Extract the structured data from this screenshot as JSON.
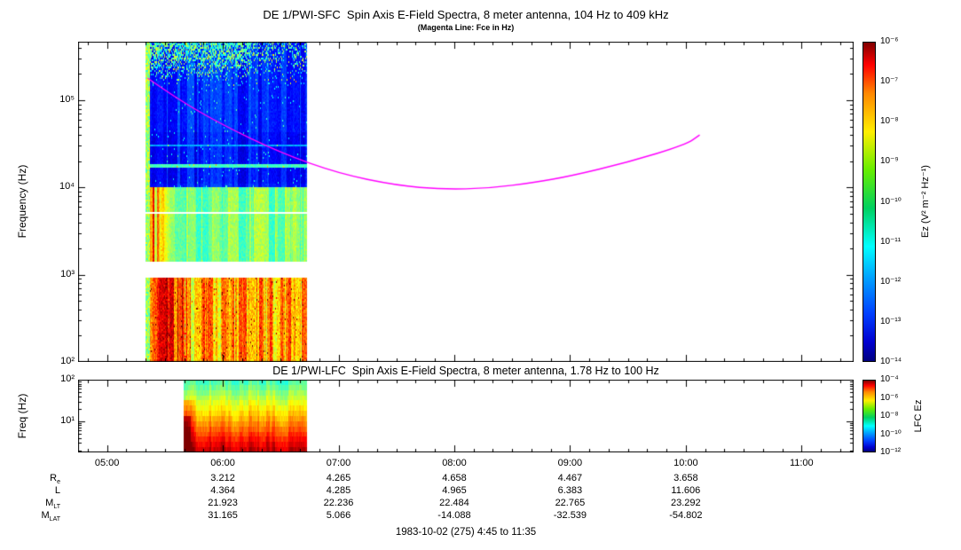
{
  "figure": {
    "footer": "1983-10-02 (275) 4:45 to 11:35"
  },
  "sfc": {
    "title": "DE 1/PWI-SFC  Spin Axis E-Field Spectra, 8 meter antenna, 104 Hz to 409 kHz",
    "subtitle": "(Magenta Line: Fce in Hz)",
    "ylabel": "Frequency (Hz)",
    "y_ticks": [
      "10⁵",
      "10⁴",
      "10³",
      "10²"
    ],
    "colorbar": {
      "label": "Ez (V² m⁻² Hz⁻¹)",
      "ticks": [
        "10⁻⁶",
        "10⁻⁷",
        "10⁻⁸",
        "10⁻⁹",
        "10⁻¹⁰",
        "10⁻¹¹",
        "10⁻¹²",
        "10⁻¹³",
        "10⁻¹⁴"
      ]
    }
  },
  "lfc": {
    "title": "DE 1/PWI-LFC  Spin Axis E-Field Spectra, 8 meter antenna, 1.78 Hz to 100 Hz",
    "ylabel": "Freq (Hz)",
    "y_ticks": [
      "10²",
      "10¹"
    ],
    "colorbar": {
      "label": "LFC Ez",
      "ticks": [
        "10⁻⁴",
        "10⁻⁶",
        "10⁻⁸",
        "10⁻¹⁰",
        "10⁻¹²"
      ]
    }
  },
  "time_axis": {
    "tick_labels": [
      "05:00",
      "06:00",
      "07:00",
      "08:00",
      "09:00",
      "10:00",
      "11:00"
    ]
  },
  "ephemeris": {
    "rows": [
      {
        "label_main": "R",
        "label_sub": "e",
        "values": [
          "3.212",
          "4.265",
          "4.658",
          "4.467",
          "3.658"
        ]
      },
      {
        "label_main": "L",
        "label_sub": "",
        "values": [
          "4.364",
          "4.285",
          "4.965",
          "6.383",
          "11.606"
        ]
      },
      {
        "label_main": "M",
        "label_sub": "LT",
        "values": [
          "21.923",
          "22.236",
          "22.484",
          "22.765",
          "23.292"
        ]
      },
      {
        "label_main": "M",
        "label_sub": "LAT",
        "values": [
          "31.165",
          "5.066",
          "-14.088",
          "-32.539",
          "-54.802"
        ]
      }
    ]
  },
  "chart_data": {
    "type": "heatmap",
    "x_hours_range": [
      4.75,
      11.45
    ],
    "x_tick_hours": [
      5,
      6,
      7,
      8,
      9,
      10,
      11
    ],
    "x_tick_labels": [
      "05:00",
      "06:00",
      "07:00",
      "08:00",
      "09:00",
      "10:00",
      "11:00"
    ],
    "x_minor_tick_minutes": 10,
    "panels": [
      {
        "id": "sfc",
        "kind": "spectrogram",
        "title": "DE 1/PWI-SFC  Spin Axis E-Field Spectra, 8 meter antenna, 104 Hz to 409 kHz",
        "freq_range_hz": [
          100,
          470000
        ],
        "freq_scale": "log",
        "y_tick_exps": [
          5,
          4,
          3,
          2
        ],
        "data_hours_range": [
          5.33,
          6.73
        ],
        "value_label": "Ez (V² m⁻² Hz⁻¹)",
        "colorbar_log10_range": [
          -6,
          -14
        ],
        "bands": [
          {
            "freq_hz": [
              100,
              925
            ],
            "character": "intense green with yellow-red vertical streaks, hottest before 05:50"
          },
          {
            "freq_hz": [
              925,
              1400
            ],
            "character": "data gap (white)"
          },
          {
            "freq_hz": [
              1400,
              10000
            ],
            "character": "moderate cyan emission, yellow-green streaks at start"
          },
          {
            "freq_hz": [
              10000,
              470000
            ],
            "character": "weak blue background, green-cyan patches near top edge"
          }
        ]
      },
      {
        "id": "lfc",
        "kind": "spectrogram",
        "title": "DE 1/PWI-LFC  Spin Axis E-Field Spectra, 8 meter antenna, 1.78 Hz to 100 Hz",
        "freq_range_hz": [
          1.78,
          100
        ],
        "freq_scale": "log",
        "y_tick_exps": [
          2,
          1
        ],
        "data_hours_range": [
          5.66,
          6.73
        ],
        "value_label": "LFC Ez",
        "colorbar_log10_range": [
          -4,
          -12
        ],
        "bands": [
          {
            "freq_hz": [
              1.78,
              6
            ],
            "character": "intense red-orange"
          },
          {
            "freq_hz": [
              6,
              30
            ],
            "character": "yellow"
          },
          {
            "freq_hz": [
              30,
              100
            ],
            "character": "green"
          }
        ]
      }
    ],
    "fce_line": {
      "label": "Fce",
      "color": "#ff00ff",
      "hours": [
        5.35,
        5.6,
        6.0,
        6.5,
        7.0,
        7.5,
        7.9,
        8.3,
        8.7,
        9.0,
        9.5,
        10.0,
        10.12
      ],
      "freq_hz": [
        180000,
        105000,
        52000,
        25000,
        14500,
        10600,
        9500,
        9800,
        11500,
        13500,
        19500,
        31000,
        40000
      ]
    },
    "ephemeris_hours": [
      6,
      7,
      8,
      9,
      10
    ]
  }
}
